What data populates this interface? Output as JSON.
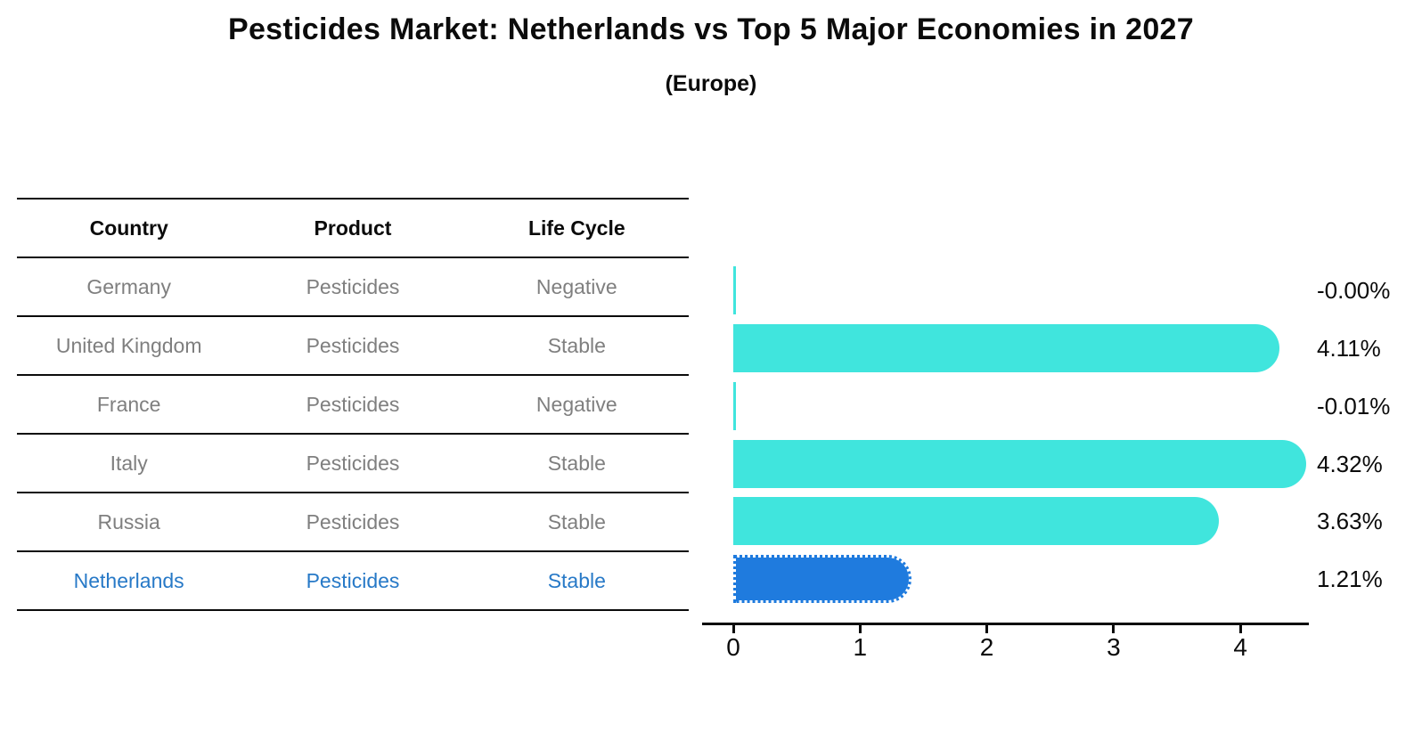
{
  "header": {
    "title": "Pesticides Market: Netherlands vs Top 5 Major Economies in 2027",
    "subtitle": "(Europe)"
  },
  "table": {
    "columns": [
      "Country",
      "Product",
      "Life Cycle"
    ],
    "rows": [
      {
        "country": "Germany",
        "product": "Pesticides",
        "life_cycle": "Negative",
        "highlight": false
      },
      {
        "country": "United Kingdom",
        "product": "Pesticides",
        "life_cycle": "Stable",
        "highlight": false
      },
      {
        "country": "France",
        "product": "Pesticides",
        "life_cycle": "Negative",
        "highlight": false
      },
      {
        "country": "Italy",
        "product": "Pesticides",
        "life_cycle": "Stable",
        "highlight": false
      },
      {
        "country": "Russia",
        "product": "Pesticides",
        "life_cycle": "Stable",
        "highlight": false
      },
      {
        "country": "Netherlands",
        "product": "Pesticides",
        "life_cycle": "Stable",
        "highlight": true
      }
    ]
  },
  "chart_data": {
    "type": "bar",
    "orientation": "horizontal",
    "title": "Pesticides Market: Netherlands vs Top 5 Major Economies in 2027",
    "subtitle": "(Europe)",
    "categories": [
      "Germany",
      "United Kingdom",
      "France",
      "Italy",
      "Russia",
      "Netherlands"
    ],
    "values": [
      -0.0,
      4.11,
      -0.01,
      4.32,
      3.63,
      1.21
    ],
    "value_labels": [
      "-0.00%",
      "4.11%",
      "-0.01%",
      "4.32%",
      "3.63%",
      "1.21%"
    ],
    "xticks": [
      0,
      1,
      2,
      3,
      4
    ],
    "xlim": [
      -0.25,
      4.55
    ],
    "xlabel": "",
    "ylabel": "",
    "grid": false,
    "legend": false,
    "highlight_index": 5,
    "bar_color": "#40e5dd",
    "highlight_bar_color": "#1f7bde",
    "highlight_text_color": "#2779c7"
  }
}
